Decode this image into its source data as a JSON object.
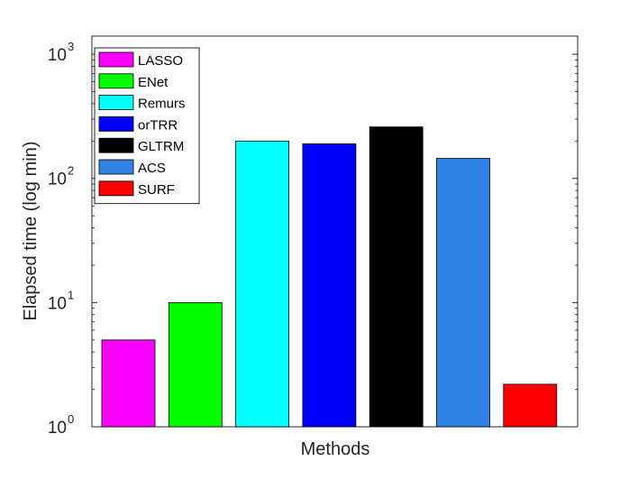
{
  "chart_data": {
    "type": "bar",
    "categories": [
      "LASSO",
      "ENet",
      "Remurs",
      "orTRR",
      "GLTRM",
      "ACS",
      "SURF"
    ],
    "values": [
      5.0,
      10.0,
      200,
      190,
      260,
      145,
      2.2
    ],
    "colors": [
      "#ff00ff",
      "#00ff00",
      "#00ffff",
      "#0000ff",
      "#000000",
      "#3182e3",
      "#ff0000"
    ],
    "title": "",
    "xlabel": "Methods",
    "ylabel": "Elapsed time (log min)",
    "yscale": "log",
    "ylim": [
      1,
      1400
    ],
    "yticks": [
      {
        "value": 1,
        "base": "10",
        "exp": "0"
      },
      {
        "value": 10,
        "base": "10",
        "exp": "1"
      },
      {
        "value": 100,
        "base": "10",
        "exp": "2"
      },
      {
        "value": 1000,
        "base": "10",
        "exp": "3"
      }
    ],
    "legend": {
      "position": "top-left",
      "entries": [
        "LASSO",
        "ENet",
        "Remurs",
        "orTRR",
        "GLTRM",
        "ACS",
        "SURF"
      ]
    },
    "grid": false
  }
}
